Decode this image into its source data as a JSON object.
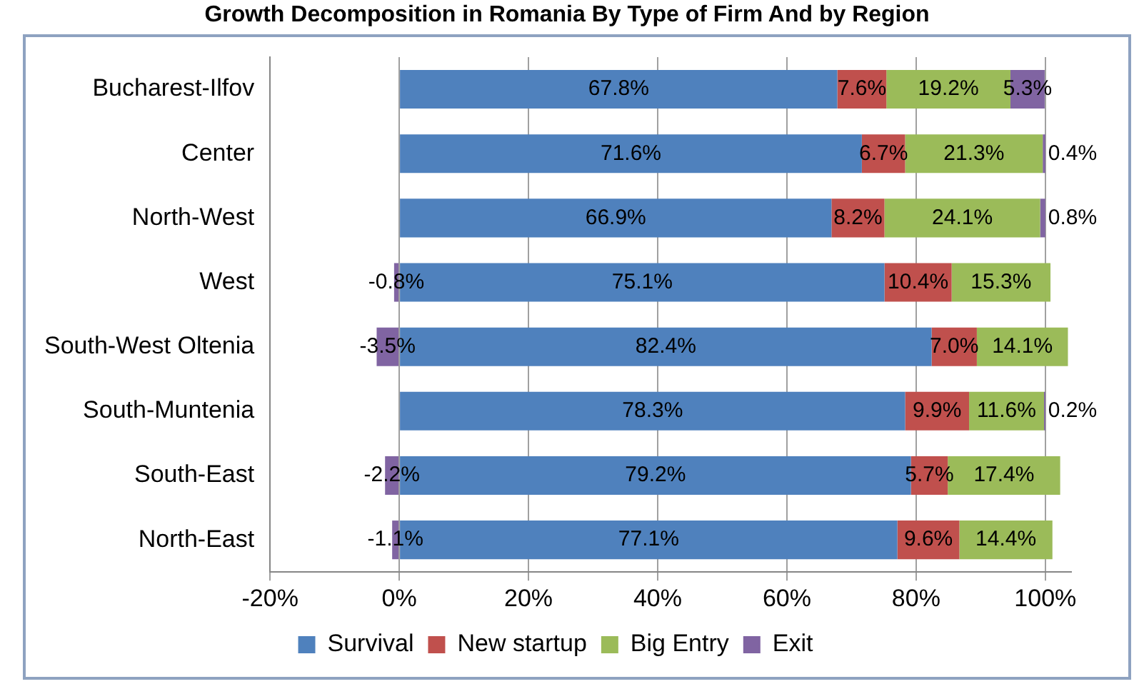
{
  "chart_data": {
    "type": "bar",
    "orientation": "horizontal",
    "stacked": true,
    "title": "Growth Decomposition in Romania By Type of Firm And by Region",
    "categories": [
      "Bucharest-Ilfov",
      "Center",
      "North-West",
      "West",
      "South-West Oltenia",
      "South-Muntenia",
      "South-East",
      "North-East"
    ],
    "series": [
      {
        "name": "Survival",
        "color": "#4f81bd",
        "values": [
          67.8,
          71.6,
          66.9,
          75.1,
          82.4,
          78.3,
          79.2,
          77.1
        ],
        "value_labels": [
          "67.8%",
          "71.6%",
          "66.9%",
          "75.1%",
          "82.4%",
          "78.3%",
          "79.2%",
          "77.1%"
        ]
      },
      {
        "name": "New startup",
        "color": "#c0504d",
        "values": [
          7.6,
          6.7,
          8.2,
          10.4,
          7.0,
          9.9,
          5.7,
          9.6
        ],
        "value_labels": [
          "7.6%",
          "6.7%",
          "8.2%",
          "10.4%",
          "7.0%",
          "9.9%",
          "5.7%",
          "9.6%"
        ]
      },
      {
        "name": "Big Entry",
        "color": "#9bbb59",
        "values": [
          19.2,
          21.3,
          24.1,
          15.3,
          14.1,
          11.6,
          17.4,
          14.4
        ],
        "value_labels": [
          "19.2%",
          "21.3%",
          "24.1%",
          "15.3%",
          "14.1%",
          "11.6%",
          "17.4%",
          "14.4%"
        ]
      },
      {
        "name": "Exit",
        "color": "#8064a2",
        "values": [
          5.3,
          0.4,
          0.8,
          -0.8,
          -3.5,
          0.2,
          -2.2,
          -1.1
        ],
        "value_labels": [
          "5.3%",
          "0.4%",
          "0.8%",
          "-0.8%",
          "-3.5%",
          "0.2%",
          "-2.2%",
          "-1.1%"
        ]
      }
    ],
    "xlim": [
      -20,
      104
    ],
    "xticks": [
      {
        "value": -20,
        "label": "-20%"
      },
      {
        "value": 0,
        "label": "0%"
      },
      {
        "value": 20,
        "label": "20%"
      },
      {
        "value": 40,
        "label": "40%"
      },
      {
        "value": 60,
        "label": "60%"
      },
      {
        "value": 80,
        "label": "80%"
      },
      {
        "value": 100,
        "label": "100%"
      }
    ],
    "grid": "x",
    "legend": "bottom"
  }
}
